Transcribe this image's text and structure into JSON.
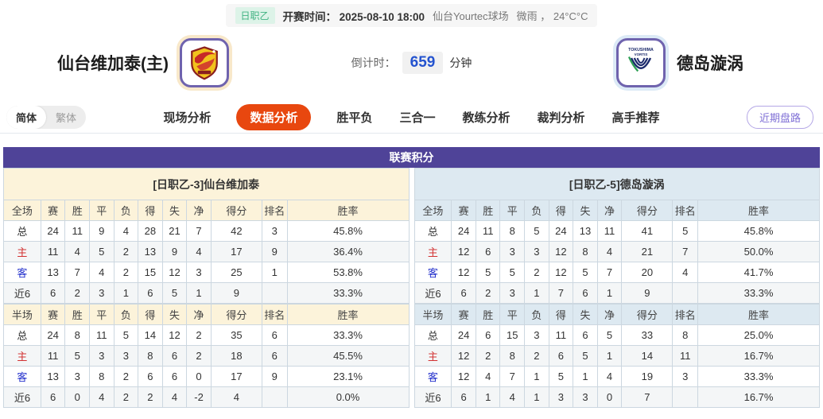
{
  "colors": {
    "accent_active_tab": "#e8470f",
    "league_bar_purple": "#4f4398",
    "home_panel_cream": "#fcf3da",
    "away_panel_blue": "#dde9f1",
    "badge_green": "#41b282",
    "countdown_blue": "#2453cf",
    "home_label_red": "#d23232",
    "away_label_blue": "#2431cc"
  },
  "meta": {
    "league": "日职乙",
    "kickoff_label": "开赛时间：",
    "kickoff_time": "2025-08-10 18:00",
    "venue": "仙台Yourtec球场",
    "weather": "微雨 ， 24°C°C"
  },
  "header": {
    "home_name": "仙台维加泰(主)",
    "away_name": "德岛漩涡",
    "home_logo": "vegalta-sendai-crest",
    "away_logo": "tokushima-vortis-crest",
    "away_logo_text_top": "TOKUSHIMA",
    "away_logo_text_bottom": "VORTIS",
    "countdown_label": "倒计时：",
    "countdown_value": "659",
    "countdown_unit": "分钟"
  },
  "lang": {
    "simplified": "简体",
    "traditional": "繁体"
  },
  "nav": {
    "tabs": [
      {
        "label": "现场分析",
        "active": false
      },
      {
        "label": "数据分析",
        "active": true
      },
      {
        "label": "胜平负",
        "active": false
      },
      {
        "label": "三合一",
        "active": false
      },
      {
        "label": "教练分析",
        "active": false
      },
      {
        "label": "裁判分析",
        "active": false
      },
      {
        "label": "高手推荐",
        "active": false
      }
    ],
    "recent_label": "近期盘路"
  },
  "league_section": {
    "title": "联赛积分"
  },
  "tables": {
    "home": {
      "title": "[日职乙-3]仙台维加泰",
      "full": {
        "header": [
          "全场",
          "赛",
          "胜",
          "平",
          "负",
          "得",
          "失",
          "净",
          "得分",
          "排名",
          "胜率"
        ],
        "rows": [
          [
            "总",
            "24",
            "11",
            "9",
            "4",
            "28",
            "21",
            "7",
            "42",
            "3",
            "45.8%"
          ],
          [
            "主",
            "11",
            "4",
            "5",
            "2",
            "13",
            "9",
            "4",
            "17",
            "9",
            "36.4%"
          ],
          [
            "客",
            "13",
            "7",
            "4",
            "2",
            "15",
            "12",
            "3",
            "25",
            "1",
            "53.8%"
          ],
          [
            "近6",
            "6",
            "2",
            "3",
            "1",
            "6",
            "5",
            "1",
            "9",
            "",
            "33.3%"
          ]
        ]
      },
      "half": {
        "header": [
          "半场",
          "赛",
          "胜",
          "平",
          "负",
          "得",
          "失",
          "净",
          "得分",
          "排名",
          "胜率"
        ],
        "rows": [
          [
            "总",
            "24",
            "8",
            "11",
            "5",
            "14",
            "12",
            "2",
            "35",
            "6",
            "33.3%"
          ],
          [
            "主",
            "11",
            "5",
            "3",
            "3",
            "8",
            "6",
            "2",
            "18",
            "6",
            "45.5%"
          ],
          [
            "客",
            "13",
            "3",
            "8",
            "2",
            "6",
            "6",
            "0",
            "17",
            "9",
            "23.1%"
          ],
          [
            "近6",
            "6",
            "0",
            "4",
            "2",
            "2",
            "4",
            "-2",
            "4",
            "",
            "0.0%"
          ]
        ]
      }
    },
    "away": {
      "title": "[日职乙-5]德岛漩涡",
      "full": {
        "header": [
          "全场",
          "赛",
          "胜",
          "平",
          "负",
          "得",
          "失",
          "净",
          "得分",
          "排名",
          "胜率"
        ],
        "rows": [
          [
            "总",
            "24",
            "11",
            "8",
            "5",
            "24",
            "13",
            "11",
            "41",
            "5",
            "45.8%"
          ],
          [
            "主",
            "12",
            "6",
            "3",
            "3",
            "12",
            "8",
            "4",
            "21",
            "7",
            "50.0%"
          ],
          [
            "客",
            "12",
            "5",
            "5",
            "2",
            "12",
            "5",
            "7",
            "20",
            "4",
            "41.7%"
          ],
          [
            "近6",
            "6",
            "2",
            "3",
            "1",
            "7",
            "6",
            "1",
            "9",
            "",
            "33.3%"
          ]
        ]
      },
      "half": {
        "header": [
          "半场",
          "赛",
          "胜",
          "平",
          "负",
          "得",
          "失",
          "净",
          "得分",
          "排名",
          "胜率"
        ],
        "rows": [
          [
            "总",
            "24",
            "6",
            "15",
            "3",
            "11",
            "6",
            "5",
            "33",
            "8",
            "25.0%"
          ],
          [
            "主",
            "12",
            "2",
            "8",
            "2",
            "6",
            "5",
            "1",
            "14",
            "11",
            "16.7%"
          ],
          [
            "客",
            "12",
            "4",
            "7",
            "1",
            "5",
            "1",
            "4",
            "19",
            "3",
            "33.3%"
          ],
          [
            "近6",
            "6",
            "1",
            "4",
            "1",
            "3",
            "3",
            "0",
            "7",
            "",
            "16.7%"
          ]
        ]
      }
    }
  }
}
